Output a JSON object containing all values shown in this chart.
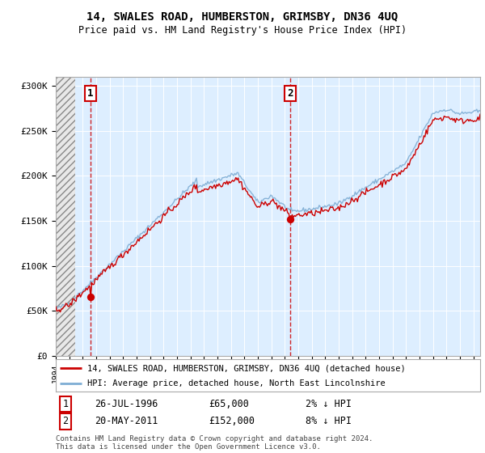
{
  "title": "14, SWALES ROAD, HUMBERSTON, GRIMSBY, DN36 4UQ",
  "subtitle": "Price paid vs. HM Land Registry's House Price Index (HPI)",
  "ylim": [
    0,
    310000
  ],
  "yticks": [
    0,
    50000,
    100000,
    150000,
    200000,
    250000,
    300000
  ],
  "ytick_labels": [
    "£0",
    "£50K",
    "£100K",
    "£150K",
    "£200K",
    "£250K",
    "£300K"
  ],
  "xstart_year": 1994,
  "xend_year": 2025,
  "sale1_year": 1996.57,
  "sale1_price": 65000,
  "sale2_year": 2011.38,
  "sale2_price": 152000,
  "sale1_date": "26-JUL-1996",
  "sale1_amount": "£65,000",
  "sale1_pct": "2% ↓ HPI",
  "sale2_date": "20-MAY-2011",
  "sale2_amount": "£152,000",
  "sale2_pct": "8% ↓ HPI",
  "line1_color": "#cc0000",
  "line2_color": "#7eadd4",
  "bg_color": "#ddeeff",
  "plot_bg": "#ffffff",
  "legend_line1": "14, SWALES ROAD, HUMBERSTON, GRIMSBY, DN36 4UQ (detached house)",
  "legend_line2": "HPI: Average price, detached house, North East Lincolnshire",
  "footer": "Contains HM Land Registry data © Crown copyright and database right 2024.\nThis data is licensed under the Open Government Licence v3.0."
}
